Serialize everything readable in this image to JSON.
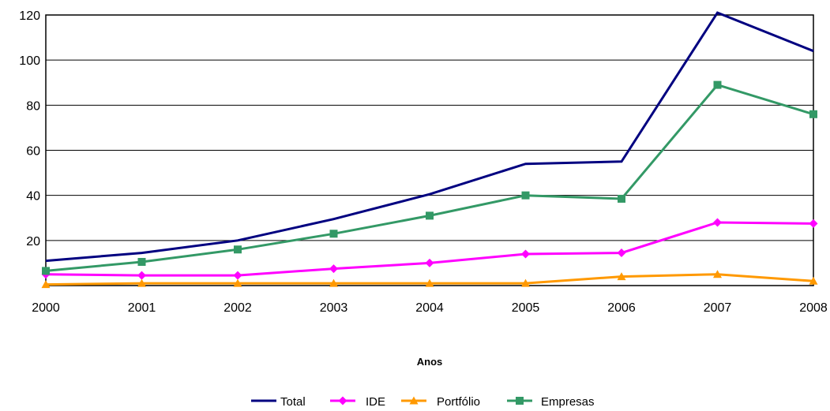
{
  "chart_data": {
    "type": "line",
    "xlabel": "Anos",
    "ylabel": "",
    "x": [
      "2000",
      "2001",
      "2002",
      "2003",
      "2004",
      "2005",
      "2006",
      "2007",
      "2008"
    ],
    "ylim": [
      0,
      120
    ],
    "yticks": [
      "20",
      "40",
      "60",
      "80",
      "100",
      "120"
    ],
    "grid": true,
    "legend_position": "bottom",
    "series": [
      {
        "name": "Total",
        "color": "#000080",
        "marker": "none",
        "values": [
          11,
          14.5,
          20,
          29.5,
          40.5,
          54,
          55,
          121,
          104
        ]
      },
      {
        "name": "IDE",
        "color": "#FF00FF",
        "marker": "diamond",
        "values": [
          5,
          4.5,
          4.5,
          7.5,
          10,
          14,
          14.5,
          28,
          27.5
        ]
      },
      {
        "name": "Portfólio",
        "color": "#FF9900",
        "marker": "triangle",
        "values": [
          0.5,
          1,
          1,
          1,
          1,
          1,
          4,
          5,
          2
        ]
      },
      {
        "name": "Empresas",
        "color": "#339966",
        "marker": "square",
        "values": [
          6.5,
          10.5,
          16,
          23,
          31,
          40,
          38.5,
          89,
          76
        ]
      }
    ]
  }
}
